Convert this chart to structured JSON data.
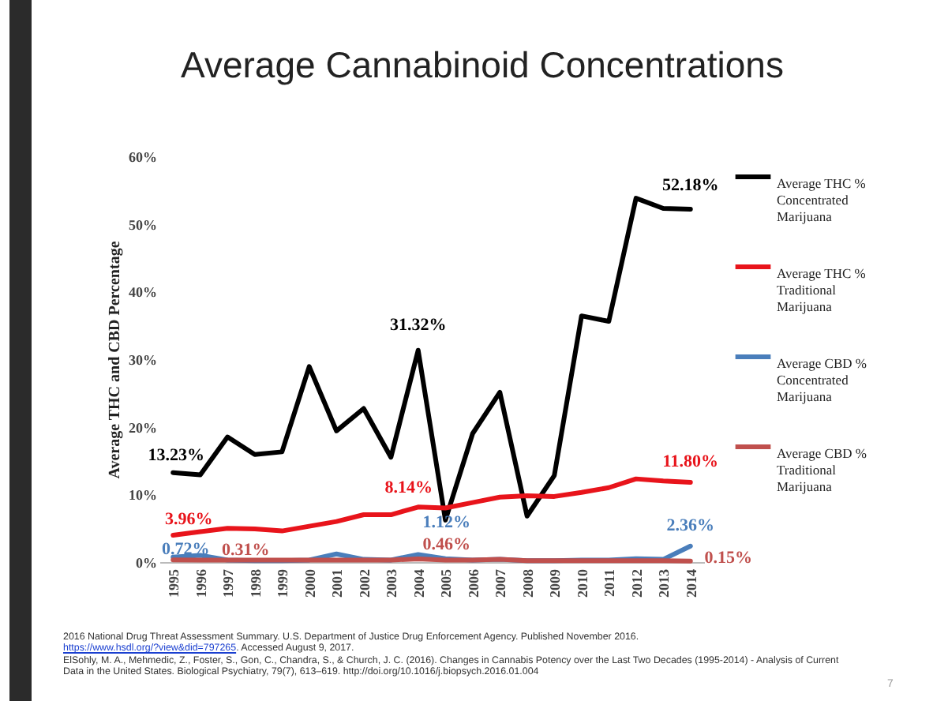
{
  "chart_data": {
    "type": "line",
    "title": "Average Cannabinoid Concentrations",
    "ylabel": "Average THC and CBD Percentage",
    "categories": [
      "1995",
      "1996",
      "1997",
      "1998",
      "1999",
      "2000",
      "2001",
      "2002",
      "2003",
      "2004",
      "2005",
      "2006",
      "2007",
      "2008",
      "2009",
      "2010",
      "2011",
      "2012",
      "2013",
      "2014"
    ],
    "ylim": [
      0,
      60
    ],
    "yticks": [
      {
        "value": 0,
        "label": "0%"
      },
      {
        "value": 10,
        "label": "10%"
      },
      {
        "value": 20,
        "label": "20%"
      },
      {
        "value": 30,
        "label": "30%"
      },
      {
        "value": 40,
        "label": "40%"
      },
      {
        "value": 50,
        "label": "50%"
      },
      {
        "value": 60,
        "label": "60%"
      }
    ],
    "series": [
      {
        "name": "Average THC % Concentrated Marijuana",
        "color": "#000000",
        "values": [
          13.23,
          12.9,
          18.5,
          15.9,
          16.3,
          28.9,
          19.4,
          22.7,
          15.5,
          31.32,
          6.2,
          19.0,
          25.1,
          6.8,
          12.8,
          36.4,
          35.6,
          53.8,
          52.3,
          52.18
        ]
      },
      {
        "name": "Average THC % Traditional Marijuana",
        "color": "#e8141b",
        "values": [
          3.96,
          4.5,
          5.0,
          4.9,
          4.6,
          5.3,
          6.0,
          7.0,
          7.0,
          8.14,
          8.0,
          8.8,
          9.6,
          9.8,
          9.7,
          10.3,
          11.0,
          12.3,
          12.0,
          11.8
        ]
      },
      {
        "name": "Average CBD % Concentrated Marijuana",
        "color": "#4a7ebb",
        "values": [
          0.72,
          1.0,
          0.3,
          0.2,
          0.2,
          0.3,
          1.2,
          0.4,
          0.3,
          1.12,
          0.5,
          0.3,
          0.4,
          0.2,
          0.2,
          0.3,
          0.3,
          0.5,
          0.4,
          2.36
        ]
      },
      {
        "name": "Average CBD % Traditional Marijuana",
        "color": "#c0504d",
        "values": [
          0.31,
          0.3,
          0.3,
          0.3,
          0.3,
          0.3,
          0.3,
          0.3,
          0.3,
          0.46,
          0.3,
          0.3,
          0.4,
          0.2,
          0.2,
          0.2,
          0.2,
          0.2,
          0.2,
          0.15
        ]
      }
    ],
    "annotations": [
      {
        "text": "13.23%",
        "x": "1995",
        "y": 13.23
      },
      {
        "text": "31.32%",
        "x": "2004",
        "y": 31.32
      },
      {
        "text": "52.18%",
        "x": "2014",
        "y": 52.18
      },
      {
        "text": "3.96%",
        "x": "1995",
        "y": 3.96
      },
      {
        "text": "8.14%",
        "x": "2004",
        "y": 8.14
      },
      {
        "text": "11.80%",
        "x": "2014",
        "y": 11.8
      },
      {
        "text": "0.72%",
        "x": "1995",
        "y": 0.72
      },
      {
        "text": "1.12%",
        "x": "2004",
        "y": 1.12
      },
      {
        "text": "2.36%",
        "x": "2014",
        "y": 2.36
      },
      {
        "text": "0.31%",
        "x": "1995",
        "y": 0.31
      },
      {
        "text": "0.46%",
        "x": "2004",
        "y": 0.46
      },
      {
        "text": "0.15%",
        "x": "2014",
        "y": 0.15
      },
      "2016 National Drug Threat Assessment Summary. U.S. Department of Justice Drug Enforcement Agency. Published November 2016.",
      "https://www.hsdl.org/?view&did=797265. Accessed August 9, 2017.",
      "ElSohly, M. A., Mehmedic, Z., Foster, S., Gon, C., Chandra, S., & Church, J. C. (2016). Changes in Cannabis Potency over the Last Two Decades (1995-2014) - Analysis of Current Data in the United States. Biological Psychiatry, 79(7), 613–619. http://doi.org/10.1016/j.biopsych.2016.01.004",
      "7"
    ],
    "legend": "right",
    "marker": "none",
    "line_style": "solid",
    "grid": false
  }
}
